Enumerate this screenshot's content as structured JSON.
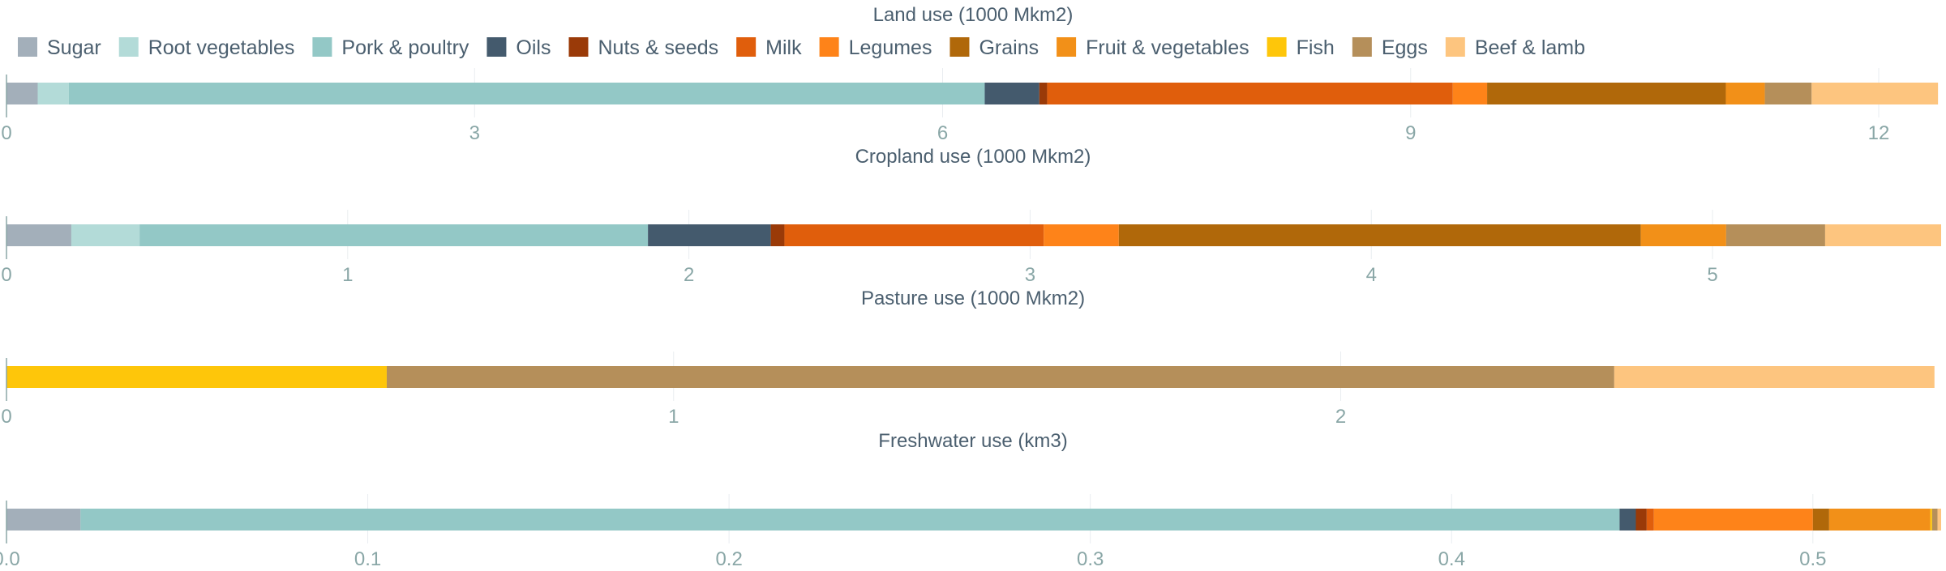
{
  "colors": {
    "grid": "#e9edf0",
    "axis": "#8aa7a7",
    "tick_text": "#8aa7a7",
    "title_text": "#4b5f6f",
    "legend_text": "#4b5f6f"
  },
  "legend": {
    "placement": "top",
    "items": [
      {
        "name": "Sugar",
        "color": "#a3afba"
      },
      {
        "name": "Root vegetables",
        "color": "#b3dbd8"
      },
      {
        "name": "Pork & poultry",
        "color": "#93c8c6"
      },
      {
        "name": "Oils",
        "color": "#445a6d"
      },
      {
        "name": "Nuts & seeds",
        "color": "#9a3a08"
      },
      {
        "name": "Milk",
        "color": "#e05e0c"
      },
      {
        "name": "Legumes",
        "color": "#fe8319"
      },
      {
        "name": "Grains",
        "color": "#b0680a"
      },
      {
        "name": "Fruit & vegetables",
        "color": "#f29018"
      },
      {
        "name": "Fish",
        "color": "#fec60a"
      },
      {
        "name": "Eggs",
        "color": "#b58f5a"
      },
      {
        "name": "Beef & lamb",
        "color": "#fdc57f"
      }
    ]
  },
  "chart_data": [
    {
      "type": "bar",
      "orientation": "horizontal",
      "stacked": true,
      "title": "Land use (1000 Mkm2)",
      "xlim": [
        0,
        12.4
      ],
      "xticks": [
        0,
        3,
        6,
        9,
        12
      ],
      "xtick_labels": [
        "0",
        "3",
        "6",
        "9",
        "12"
      ],
      "grid": true,
      "values": [
        {
          "series": "Sugar",
          "value": 0.2
        },
        {
          "series": "Root vegetables",
          "value": 0.2
        },
        {
          "series": "Pork & poultry",
          "value": 5.87
        },
        {
          "series": "Oils",
          "value": 0.35
        },
        {
          "series": "Nuts & seeds",
          "value": 0.05
        },
        {
          "series": "Milk",
          "value": 2.6
        },
        {
          "series": "Legumes",
          "value": 0.22
        },
        {
          "series": "Grains",
          "value": 1.53
        },
        {
          "series": "Fruit & vegetables",
          "value": 0.25
        },
        {
          "series": "Fish",
          "value": 0.0
        },
        {
          "series": "Eggs",
          "value": 0.3
        },
        {
          "series": "Beef & lamb",
          "value": 0.81
        }
      ]
    },
    {
      "type": "bar",
      "orientation": "horizontal",
      "stacked": true,
      "title": "Cropland use (1000 Mkm2)",
      "xlim": [
        0,
        5.67
      ],
      "xticks": [
        0,
        1,
        2,
        3,
        4,
        5
      ],
      "xtick_labels": [
        "0",
        "1",
        "2",
        "3",
        "4",
        "5"
      ],
      "grid": true,
      "values": [
        {
          "series": "Sugar",
          "value": 0.19
        },
        {
          "series": "Root vegetables",
          "value": 0.2
        },
        {
          "series": "Pork & poultry",
          "value": 1.49
        },
        {
          "series": "Oils",
          "value": 0.36
        },
        {
          "series": "Nuts & seeds",
          "value": 0.04
        },
        {
          "series": "Milk",
          "value": 0.76
        },
        {
          "series": "Legumes",
          "value": 0.22
        },
        {
          "series": "Grains",
          "value": 1.53
        },
        {
          "series": "Fruit & vegetables",
          "value": 0.25
        },
        {
          "series": "Fish",
          "value": 0.0
        },
        {
          "series": "Eggs",
          "value": 0.29
        },
        {
          "series": "Beef & lamb",
          "value": 0.34
        }
      ]
    },
    {
      "type": "bar",
      "orientation": "horizontal",
      "stacked": true,
      "title": "Pasture use (1000 Mkm2)",
      "xlim": [
        0,
        2.9
      ],
      "xticks": [
        0,
        1,
        2
      ],
      "xtick_labels": [
        "0",
        "1",
        "2"
      ],
      "grid": true,
      "values": [
        {
          "series": "Sugar",
          "value": 0.0
        },
        {
          "series": "Root vegetables",
          "value": 0.0
        },
        {
          "series": "Pork & poultry",
          "value": 0.0
        },
        {
          "series": "Oils",
          "value": 0.0
        },
        {
          "series": "Nuts & seeds",
          "value": 0.0
        },
        {
          "series": "Milk",
          "value": 0.0
        },
        {
          "series": "Legumes",
          "value": 0.0
        },
        {
          "series": "Grains",
          "value": 0.0
        },
        {
          "series": "Fruit & vegetables",
          "value": 0.0
        },
        {
          "series": "Fish",
          "value": 0.57
        },
        {
          "series": "Eggs",
          "value": 1.84
        },
        {
          "series": "Beef & lamb",
          "value": 0.48
        }
      ]
    },
    {
      "type": "bar",
      "orientation": "horizontal",
      "stacked": true,
      "title": "Freshwater use (km3)",
      "xlim": [
        0,
        0.5355
      ],
      "xticks": [
        0.0,
        0.1,
        0.2,
        0.3,
        0.4,
        0.5
      ],
      "xtick_labels": [
        "0.0",
        "0.1",
        "0.2",
        "0.3",
        "0.4",
        "0.5"
      ],
      "grid": true,
      "values": [
        {
          "series": "Sugar",
          "value": 0.0205
        },
        {
          "series": "Root vegetables",
          "value": 0.0
        },
        {
          "series": "Pork & poultry",
          "value": 0.426
        },
        {
          "series": "Oils",
          "value": 0.0045
        },
        {
          "series": "Nuts & seeds",
          "value": 0.003
        },
        {
          "series": "Milk",
          "value": 0.002
        },
        {
          "series": "Legumes",
          "value": 0.044
        },
        {
          "series": "Grains",
          "value": 0.0045
        },
        {
          "series": "Fruit & vegetables",
          "value": 0.028
        },
        {
          "series": "Fish",
          "value": 0.0005
        },
        {
          "series": "Eggs",
          "value": 0.0015
        },
        {
          "series": "Beef & lamb",
          "value": 0.001
        }
      ]
    }
  ]
}
